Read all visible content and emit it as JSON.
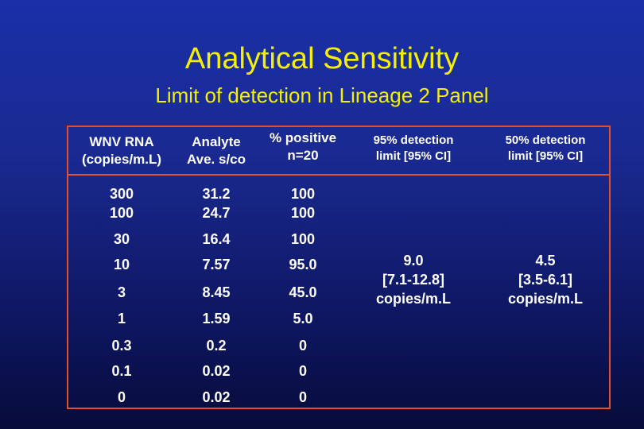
{
  "title": "Analytical Sensitivity",
  "subtitle": "Limit of detection in Lineage 2 Panel",
  "headers": {
    "col1": [
      "WNV RNA",
      "(copies/m.L)"
    ],
    "col2": [
      "Analyte",
      "Ave. s/co"
    ],
    "col3": [
      "% positive",
      "n=20"
    ],
    "col4": [
      "95% detection",
      "limit [95% CI]"
    ],
    "col5": [
      "50% detection",
      "limit [95% CI]"
    ]
  },
  "rows": [
    {
      "rna": "300",
      "analyte": "31.2",
      "positive": "100"
    },
    {
      "rna": "100",
      "analyte": "24.7",
      "positive": "100"
    },
    {
      "rna": "30",
      "analyte": "16.4",
      "positive": "100"
    },
    {
      "rna": "10",
      "analyte": "7.57",
      "positive": "95.0"
    },
    {
      "rna": "3",
      "analyte": "8.45",
      "positive": "45.0"
    },
    {
      "rna": "1",
      "analyte": "1.59",
      "positive": "5.0"
    },
    {
      "rna": "0.3",
      "analyte": "0.2",
      "positive": "0"
    },
    {
      "rna": "0.1",
      "analyte": "0.02",
      "positive": "0"
    },
    {
      "rna": "0",
      "analyte": "0.02",
      "positive": "0"
    }
  ],
  "limit95": [
    "9.0",
    "[7.1-12.8]",
    "copies/m.L"
  ],
  "limit50": [
    "4.5",
    "[3.5-6.1]",
    "copies/m.L"
  ],
  "colors": {
    "title": "#f4f000",
    "border": "#e0502a",
    "text": "#ffffff"
  }
}
